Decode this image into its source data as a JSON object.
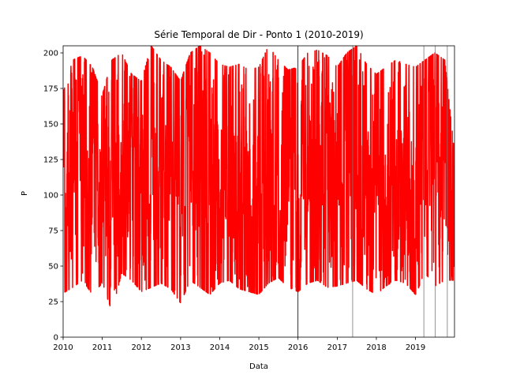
{
  "chart_data": {
    "type": "line",
    "title": "Série Temporal de Dir - Ponto 1 (2010-2019)",
    "xlabel": "Data",
    "ylabel": "P",
    "xlim": [
      "2010-01-01",
      "2019-12-31"
    ],
    "ylim": [
      0,
      205
    ],
    "x_ticks": [
      "2010",
      "2011",
      "2012",
      "2013",
      "2014",
      "2015",
      "2016",
      "2017",
      "2018",
      "2019"
    ],
    "y_ticks": [
      0,
      25,
      50,
      75,
      100,
      125,
      150,
      175,
      200
    ],
    "grid": false,
    "legend": "none",
    "series": [
      {
        "color": "#ff0000",
        "x": [
          "2010-01-01",
          "2010-04-01",
          "2010-07-01",
          "2010-10-01",
          "2011-01-01",
          "2011-04-01",
          "2011-07-01",
          "2011-10-01",
          "2012-01-01",
          "2012-04-01",
          "2012-07-01",
          "2012-10-01",
          "2013-01-01",
          "2013-04-01",
          "2013-07-01",
          "2013-10-01",
          "2014-01-01",
          "2014-04-01",
          "2014-07-01",
          "2014-10-01",
          "2015-01-01",
          "2015-04-01",
          "2015-07-01",
          "2015-10-01",
          "2016-01-01",
          "2016-04-01",
          "2016-07-01",
          "2016-10-01",
          "2017-01-01",
          "2017-04-01",
          "2017-07-01",
          "2017-10-01",
          "2018-01-01",
          "2018-04-01",
          "2018-07-01",
          "2018-10-01",
          "2019-01-01",
          "2019-04-01",
          "2019-07-01",
          "2019-10-01",
          "2019-12-31"
        ],
        "min": [
          31,
          35,
          40,
          30,
          38,
          18,
          45,
          40,
          32,
          35,
          38,
          34,
          24,
          40,
          35,
          30,
          38,
          40,
          34,
          32,
          30,
          38,
          42,
          35,
          32,
          38,
          40,
          35,
          36,
          38,
          40,
          34,
          30,
          36,
          40,
          38,
          30,
          45,
          36,
          40,
          40
        ],
        "max": [
          172,
          195,
          198,
          190,
          170,
          195,
          200,
          185,
          180,
          205,
          195,
          190,
          180,
          200,
          205,
          200,
          192,
          190,
          192,
          188,
          190,
          205,
          195,
          188,
          190,
          200,
          202,
          198,
          190,
          200,
          205,
          192,
          185,
          190,
          195,
          192,
          190,
          195,
          200,
          195,
          130
        ]
      }
    ],
    "vertical_lines": [
      {
        "x": "2016-01-01",
        "color": "#000000"
      },
      {
        "x": "2017-05-25",
        "color": "#777777"
      },
      {
        "x": "2019-03-20",
        "color": "#777777"
      },
      {
        "x": "2019-07-05",
        "color": "#777777"
      },
      {
        "x": "2019-10-25",
        "color": "#777777"
      }
    ]
  }
}
